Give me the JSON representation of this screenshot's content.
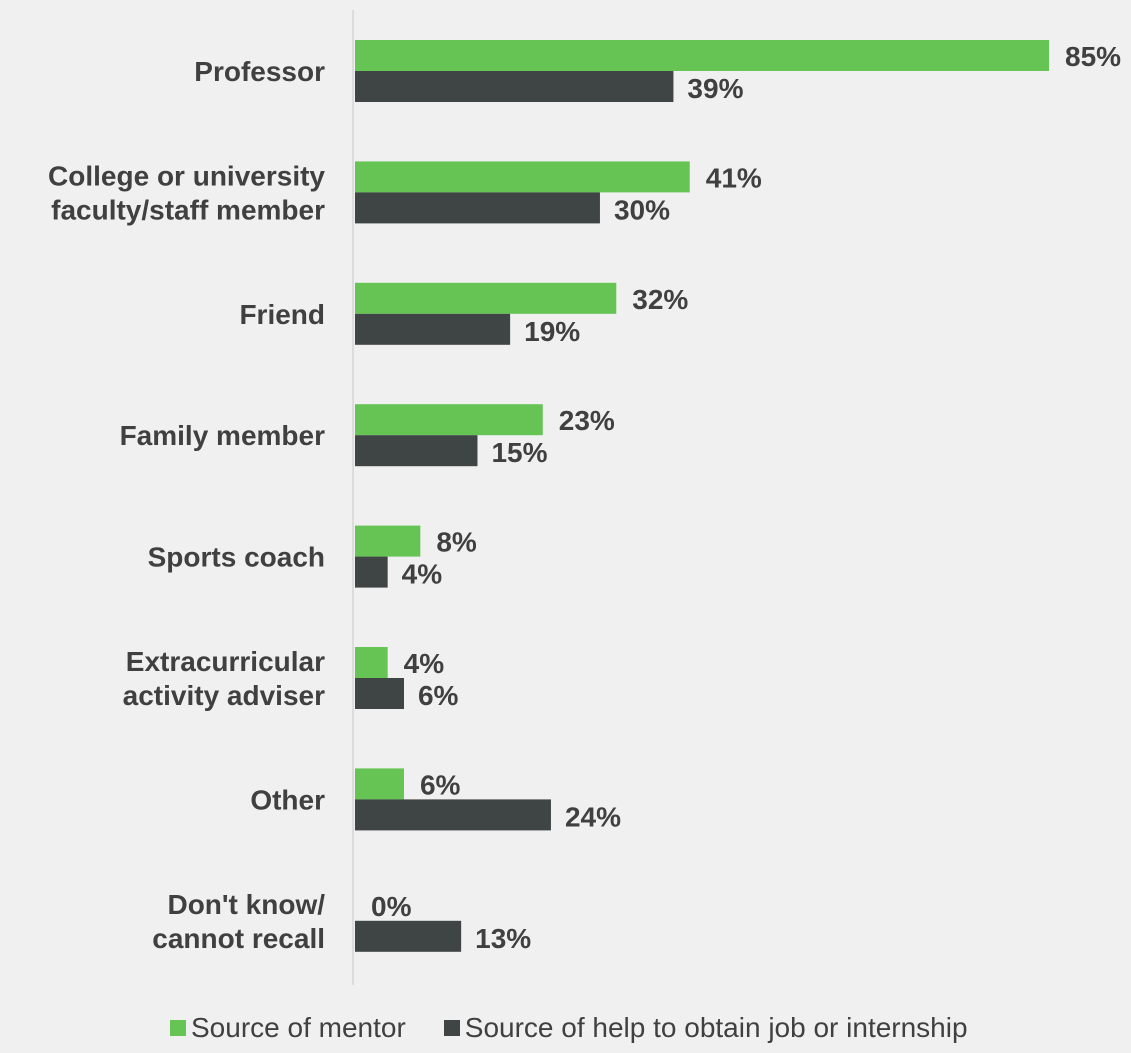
{
  "colors": {
    "mentor": "#66c455",
    "job_help": "#3f4444",
    "axis": "#dcdcdc",
    "text": "#404040"
  },
  "legend": {
    "mentor_label": "Source of mentor",
    "job_help_label": "Source of help to obtain job or internship"
  },
  "chart_data": {
    "type": "bar",
    "orientation": "horizontal",
    "categories": [
      [
        "Professor"
      ],
      [
        "College or university",
        "faculty/staff member"
      ],
      [
        "Friend"
      ],
      [
        "Family member"
      ],
      [
        "Sports coach"
      ],
      [
        "Extracurricular",
        "activity adviser"
      ],
      [
        "Other"
      ],
      [
        "Don't know/",
        "cannot recall"
      ]
    ],
    "series": [
      {
        "name": "Source of mentor",
        "values": [
          85,
          41,
          32,
          23,
          8,
          4,
          6,
          0
        ],
        "labels": [
          "85%",
          "41%",
          "32%",
          "23%",
          "8%",
          "4%",
          "6%",
          "0%"
        ]
      },
      {
        "name": "Source of help to obtain job or internship",
        "values": [
          39,
          30,
          19,
          15,
          4,
          6,
          24,
          13
        ],
        "labels": [
          "39%",
          "30%",
          "19%",
          "15%",
          "4%",
          "6%",
          "24%",
          "13%"
        ]
      }
    ],
    "xlim": [
      0,
      85
    ],
    "grid": false,
    "legend_position": "bottom"
  }
}
